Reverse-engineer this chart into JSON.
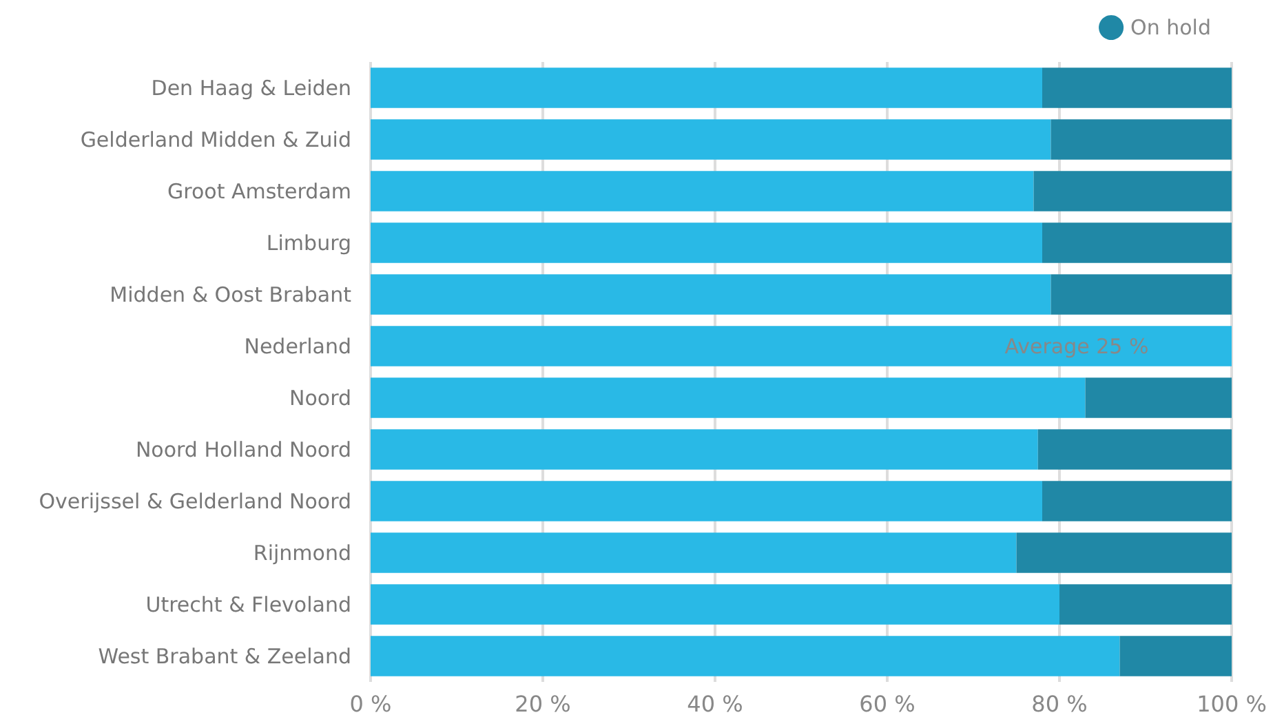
{
  "chart_data": {
    "type": "bar",
    "orientation": "horizontal",
    "stacked": true,
    "categories": [
      "Den Haag & Leiden",
      "Gelderland Midden & Zuid",
      "Groot Amsterdam",
      "Limburg",
      "Midden & Oost Brabant",
      "Nederland",
      "Noord",
      "Noord Holland Noord",
      "Overijssel & Gelderland Noord",
      "Rijnmond",
      "Utrecht & Flevoland",
      "West Brabant & Zeeland"
    ],
    "series": [
      {
        "color": "#29b9e6",
        "values": [
          78,
          79,
          77,
          78,
          79,
          100,
          83,
          77.5,
          78,
          75,
          80,
          87
        ]
      },
      {
        "name": "On hold",
        "color": "#2088a6",
        "values": [
          22,
          21,
          23,
          22,
          21,
          null,
          17,
          22.5,
          22,
          25,
          20,
          13
        ]
      }
    ],
    "xlim": [
      0,
      100
    ],
    "xticks": [
      {
        "value": 0,
        "label": "0 %"
      },
      {
        "value": 20,
        "label": "20 %"
      },
      {
        "value": 40,
        "label": "40 %"
      },
      {
        "value": 60,
        "label": "60 %"
      },
      {
        "value": 80,
        "label": "80 %"
      },
      {
        "value": 100,
        "label": "100 %"
      }
    ],
    "annotations": [
      {
        "text": "Average 25 %",
        "x": 82,
        "y": "Nederland"
      }
    ],
    "grid": "x",
    "legend": "top right"
  }
}
